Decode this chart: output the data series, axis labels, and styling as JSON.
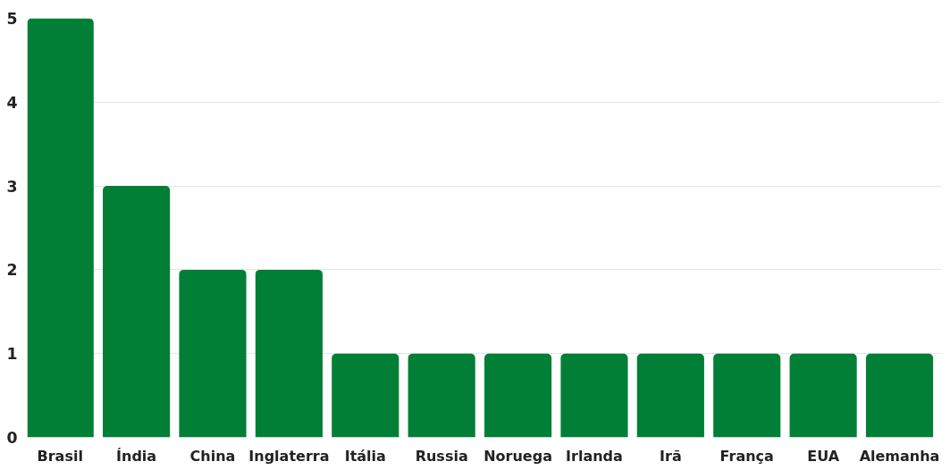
{
  "chart_data": {
    "type": "bar",
    "categories": [
      "Brasil",
      "Índia",
      "China",
      "Inglaterra",
      "Itália",
      "Russia",
      "Noruega",
      "Irlanda",
      "Irã",
      "França",
      "EUA",
      "Alemanha"
    ],
    "values": [
      5,
      3,
      2,
      2,
      1,
      1,
      1,
      1,
      1,
      1,
      1,
      1
    ],
    "color": "#017f37",
    "ylim": [
      0,
      5
    ],
    "yticks": [
      0,
      1,
      2,
      3,
      4,
      5
    ],
    "grid": "y"
  }
}
